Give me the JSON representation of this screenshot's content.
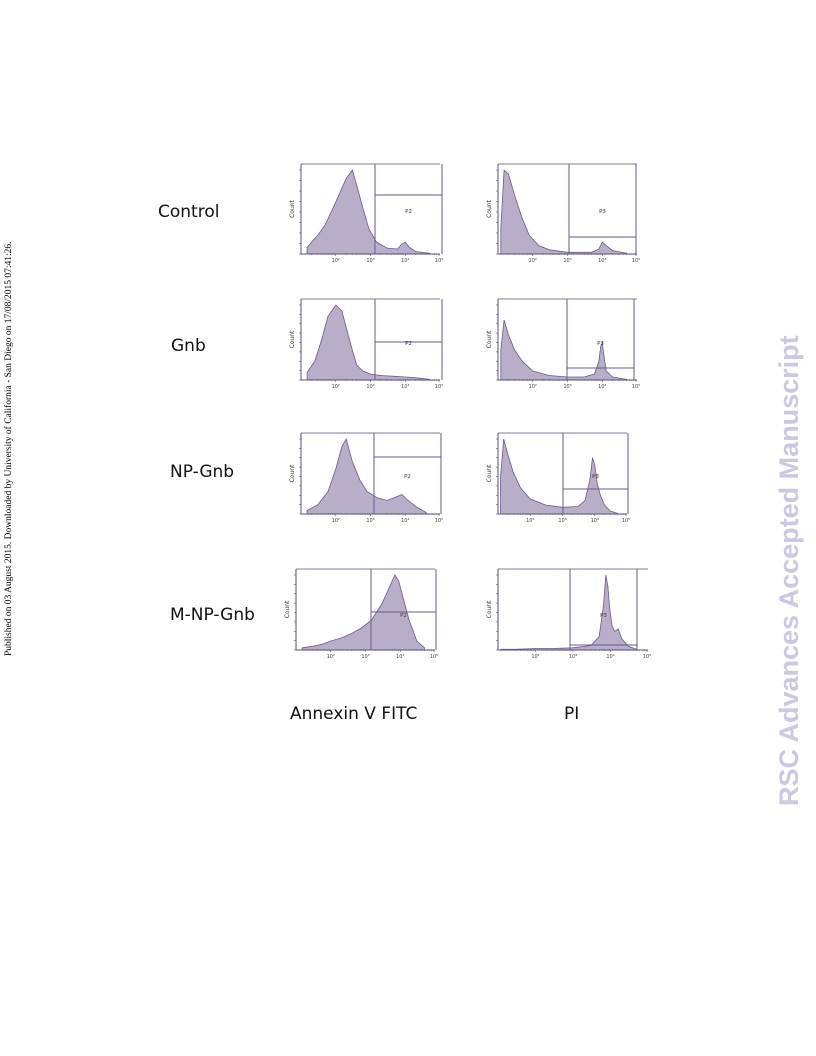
{
  "side_note": "Published on 03 August 2015. Downloaded by University of California - San Diego on 17/08/2015 07:41:26.",
  "watermark": "RSC Advances Accepted Manuscript",
  "row_labels": [
    "Control",
    "Gnb",
    "NP-Gnb",
    "M-NP-Gnb"
  ],
  "column_labels": [
    "Annexin V FITC",
    "PI"
  ],
  "colors": {
    "histogram_fill": "#b9aec9",
    "histogram_stroke": "#6b5a8a",
    "gate": "#6a5a88",
    "axis": "#5a4f78"
  },
  "chart_data": [
    {
      "type": "area",
      "row": "Control",
      "column": "Annexin V FITC",
      "ylabel": "Count",
      "xscale": "log",
      "xlim": [
        10,
        100000
      ],
      "xticks": [
        "10²",
        "10³",
        "10⁴",
        "10⁵"
      ],
      "gate": "P2",
      "x": [
        15,
        20,
        30,
        50,
        100,
        200,
        300,
        400,
        600,
        900,
        1500,
        3000,
        6000,
        8000,
        10000,
        13000,
        20000,
        50000
      ],
      "y": [
        8,
        14,
        22,
        35,
        62,
        90,
        100,
        82,
        55,
        30,
        14,
        7,
        6,
        12,
        14,
        8,
        3,
        1
      ]
    },
    {
      "type": "area",
      "row": "Control",
      "column": "PI",
      "ylabel": "Count",
      "xscale": "log",
      "xlim": [
        10,
        100000
      ],
      "xticks": [
        "10²",
        "10³",
        "10⁴",
        "10⁵"
      ],
      "gate": "P3",
      "x": [
        12,
        15,
        20,
        30,
        50,
        80,
        150,
        300,
        1000,
        5000,
        8000,
        10000,
        13000,
        20000,
        50000
      ],
      "y": [
        30,
        100,
        95,
        70,
        42,
        22,
        10,
        5,
        2,
        2,
        6,
        14,
        10,
        4,
        1
      ]
    },
    {
      "type": "area",
      "row": "Gnb",
      "column": "Annexin V FITC",
      "ylabel": "Count",
      "xscale": "log",
      "xlim": [
        10,
        100000
      ],
      "xticks": [
        "10²",
        "10³",
        "10⁴",
        "10⁵"
      ],
      "gate": "P2",
      "x": [
        15,
        25,
        40,
        60,
        100,
        150,
        200,
        300,
        400,
        600,
        1000,
        2000,
        5000,
        10000,
        20000,
        50000
      ],
      "y": [
        10,
        25,
        55,
        85,
        100,
        92,
        70,
        40,
        20,
        12,
        8,
        6,
        5,
        4,
        3,
        1
      ]
    },
    {
      "type": "area",
      "row": "Gnb",
      "column": "PI",
      "ylabel": "Count",
      "xscale": "log",
      "xlim": [
        10,
        100000
      ],
      "xticks": [
        "10²",
        "10³",
        "10⁴",
        "10⁵"
      ],
      "gate": "P3",
      "x": [
        12,
        15,
        20,
        30,
        50,
        100,
        300,
        1000,
        3000,
        6000,
        8000,
        9000,
        10000,
        11000,
        13000,
        20000,
        50000
      ],
      "y": [
        40,
        80,
        60,
        40,
        25,
        12,
        6,
        4,
        4,
        8,
        25,
        45,
        50,
        35,
        12,
        4,
        1
      ]
    },
    {
      "type": "area",
      "row": "NP-Gnb",
      "column": "Annexin V FITC",
      "ylabel": "Count",
      "xscale": "log",
      "xlim": [
        10,
        100000
      ],
      "xticks": [
        "10²",
        "10³",
        "10⁴",
        "10⁵"
      ],
      "gate": "P2",
      "x": [
        15,
        30,
        60,
        100,
        150,
        200,
        300,
        500,
        800,
        1500,
        3000,
        5000,
        8000,
        12000,
        20000,
        40000
      ],
      "y": [
        5,
        12,
        30,
        60,
        90,
        100,
        70,
        45,
        30,
        22,
        18,
        22,
        26,
        18,
        10,
        2
      ]
    },
    {
      "type": "area",
      "row": "NP-Gnb",
      "column": "PI",
      "ylabel": "Count",
      "xscale": "log",
      "xlim": [
        10,
        100000
      ],
      "xticks": [
        "10²",
        "10³",
        "10⁴",
        "10⁵"
      ],
      "gate": "P3",
      "x": [
        12,
        15,
        20,
        30,
        50,
        100,
        300,
        1000,
        3000,
        5000,
        7000,
        8500,
        10000,
        12000,
        15000,
        20000,
        30000,
        50000
      ],
      "y": [
        50,
        100,
        80,
        55,
        35,
        20,
        12,
        9,
        10,
        18,
        45,
        75,
        65,
        40,
        25,
        12,
        4,
        1
      ]
    },
    {
      "type": "area",
      "row": "M-NP-Gnb",
      "column": "Annexin V FITC",
      "ylabel": "Count",
      "xscale": "log",
      "xlim": [
        10,
        100000
      ],
      "xticks": [
        "10²",
        "10³",
        "10⁴",
        "10⁵"
      ],
      "gate": "P2",
      "x": [
        15,
        30,
        60,
        100,
        200,
        400,
        800,
        1500,
        3000,
        5000,
        7000,
        9000,
        12000,
        18000,
        30000,
        50000
      ],
      "y": [
        3,
        5,
        8,
        12,
        16,
        22,
        30,
        40,
        62,
        85,
        100,
        92,
        70,
        40,
        12,
        3
      ]
    },
    {
      "type": "area",
      "row": "M-NP-Gnb",
      "column": "PI",
      "ylabel": "Count",
      "xscale": "log",
      "xlim": [
        10,
        100000
      ],
      "xticks": [
        "10²",
        "10³",
        "10⁴",
        "10⁵"
      ],
      "gate": "P3",
      "x": [
        12,
        30,
        100,
        300,
        1000,
        3000,
        5000,
        6500,
        7500,
        8500,
        9500,
        11000,
        13000,
        16000,
        20000,
        30000,
        50000
      ],
      "y": [
        1,
        1,
        2,
        2,
        3,
        6,
        18,
        60,
        100,
        85,
        55,
        32,
        25,
        28,
        15,
        5,
        1
      ]
    }
  ]
}
